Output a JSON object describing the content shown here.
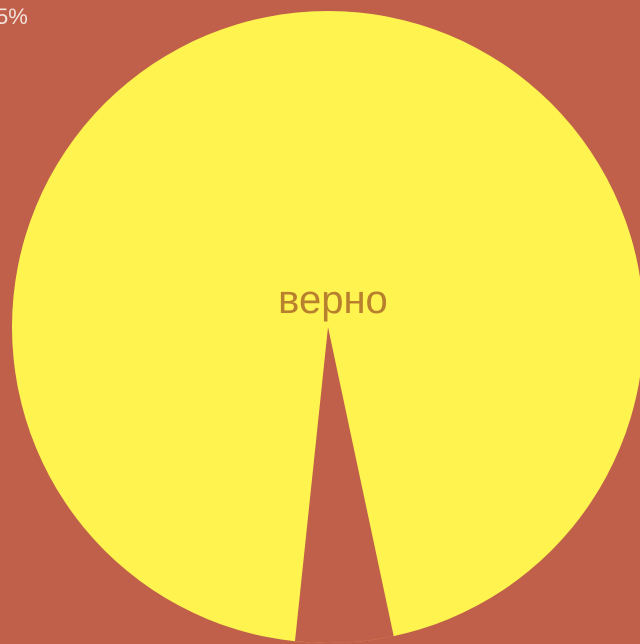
{
  "chart_data": {
    "type": "pie",
    "title": "",
    "slices": [
      {
        "label": "верно",
        "value": 95,
        "color": "#fff44f",
        "label_color": "#b8802e"
      },
      {
        "label": "",
        "value": 5,
        "color": "#c0604a",
        "label_color": "#f2e2dc"
      }
    ],
    "visible_labels": {
      "main_slice": "верно",
      "minor_percent": "5%"
    },
    "background_color": "#c0604a"
  }
}
